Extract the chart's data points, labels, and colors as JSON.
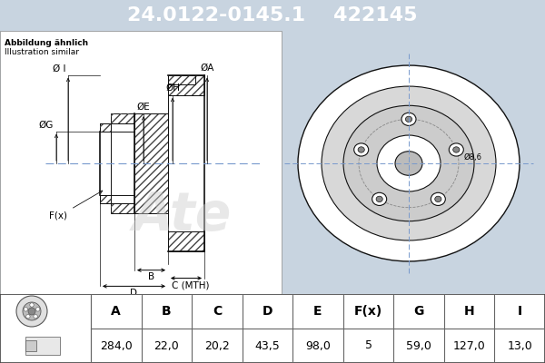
{
  "part_number": "24.0122-0145.1",
  "ref_number": "422145",
  "subtitle1": "Abbildung ähnlich",
  "subtitle2": "Illustration similar",
  "header_bg": "#0000ee",
  "header_text_color": "#ffffff",
  "line_color": "#111111",
  "labels": [
    "A",
    "B",
    "C",
    "D",
    "E",
    "F(x)",
    "G",
    "H",
    "I"
  ],
  "values": [
    "284,0",
    "22,0",
    "20,2",
    "43,5",
    "98,0",
    "5",
    "59,0",
    "127,0",
    "13,0"
  ],
  "crosshair_color": "#7799cc",
  "watermark_color": "#cccccc",
  "bg_color": "#c8d4e0",
  "diagram_bg": "#c8d4e0",
  "title_fontsize": 16,
  "label_fontsize": 7.5,
  "table_fontsize": 9
}
